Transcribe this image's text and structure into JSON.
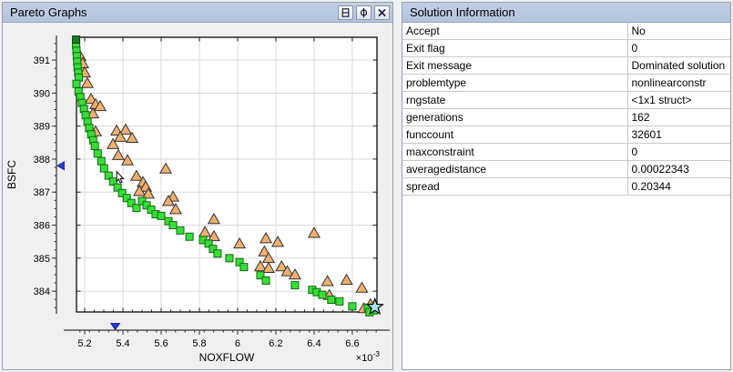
{
  "left_panel": {
    "title": "Pareto Graphs",
    "buttons": [
      {
        "icon": "split-window-icon"
      },
      {
        "icon": "undock-icon"
      },
      {
        "icon": "close-icon"
      }
    ]
  },
  "right_panel": {
    "title": "Solution Information",
    "rows": [
      {
        "property": "Accept",
        "value": "No"
      },
      {
        "property": "Exit flag",
        "value": "0"
      },
      {
        "property": "Exit message",
        "value": "Dominated solution"
      },
      {
        "property": "problemtype",
        "value": "nonlinearconstr"
      },
      {
        "property": "rngstate",
        "value": "<1x1 struct>"
      },
      {
        "property": "generations",
        "value": "162"
      },
      {
        "property": "funccount",
        "value": "32601"
      },
      {
        "property": "maxconstraint",
        "value": "0"
      },
      {
        "property": "averagedistance",
        "value": "0.00022343"
      },
      {
        "property": "spread",
        "value": "0.20344"
      }
    ]
  },
  "chart_data": {
    "type": "scatter",
    "xlabel": "NOXFLOW",
    "ylabel": "BSFC",
    "x_scale_label": {
      "base": "×10",
      "exp": "-3"
    },
    "x_units_note": "x values are in units of 1e-3",
    "xlim": [
      5.157,
      6.729
    ],
    "ylim": [
      383.37,
      391.69
    ],
    "xticks": [
      5.2,
      5.4,
      5.6,
      5.8,
      6.0,
      6.2,
      6.4,
      6.6
    ],
    "xtick_labels": [
      "5.2",
      "5.4",
      "5.6",
      "5.8",
      "6",
      "6.2",
      "6.4",
      "6.6"
    ],
    "yticks": [
      384,
      385,
      386,
      387,
      388,
      389,
      390,
      391
    ],
    "ytick_labels": [
      "384",
      "385",
      "386",
      "387",
      "388",
      "389",
      "390",
      "391"
    ],
    "x_minor_step": 0.05,
    "y_minor_step": 0.25,
    "grid": true,
    "legend_position": "none",
    "series": [
      {
        "name": "dominated-solutions",
        "marker": "triangle",
        "fill": "#f2b06c",
        "edge": "#333333",
        "points": [
          [
            5.176,
            391.12
          ],
          [
            5.19,
            390.9
          ],
          [
            5.2,
            390.62
          ],
          [
            5.214,
            390.3
          ],
          [
            5.233,
            389.82
          ],
          [
            5.257,
            389.66
          ],
          [
            5.281,
            389.6
          ],
          [
            5.243,
            389.38
          ],
          [
            5.257,
            388.84
          ],
          [
            5.367,
            388.86
          ],
          [
            5.414,
            388.89
          ],
          [
            5.386,
            388.67
          ],
          [
            5.448,
            388.64
          ],
          [
            5.348,
            388.45
          ],
          [
            5.376,
            388.12
          ],
          [
            5.424,
            387.96
          ],
          [
            5.624,
            387.71
          ],
          [
            5.471,
            387.49
          ],
          [
            5.505,
            387.3
          ],
          [
            5.519,
            387.16
          ],
          [
            5.486,
            387.03
          ],
          [
            5.533,
            386.95
          ],
          [
            5.662,
            386.86
          ],
          [
            5.638,
            386.73
          ],
          [
            5.676,
            386.48
          ],
          [
            5.876,
            386.18
          ],
          [
            5.829,
            385.79
          ],
          [
            5.876,
            385.66
          ],
          [
            6.01,
            385.44
          ],
          [
            6.148,
            385.6
          ],
          [
            6.21,
            385.49
          ],
          [
            6.4,
            385.76
          ],
          [
            6.14,
            385.2
          ],
          [
            6.162,
            385.0
          ],
          [
            6.119,
            384.75
          ],
          [
            6.162,
            384.7
          ],
          [
            6.23,
            384.75
          ],
          [
            6.26,
            384.6
          ],
          [
            6.3,
            384.5
          ],
          [
            6.47,
            384.3
          ],
          [
            6.57,
            384.34
          ],
          [
            6.65,
            384.1
          ],
          [
            6.48,
            383.88
          ],
          [
            6.695,
            383.6
          ],
          [
            6.66,
            383.48
          ]
        ]
      },
      {
        "name": "pareto-front",
        "marker": "square",
        "fill": "#35e035",
        "edge": "#156615",
        "points": [
          [
            5.155,
            391.45
          ],
          [
            5.157,
            391.28
          ],
          [
            5.159,
            391.12
          ],
          [
            5.161,
            390.95
          ],
          [
            5.163,
            390.78
          ],
          [
            5.166,
            390.62
          ],
          [
            5.169,
            390.47
          ],
          [
            5.157,
            390.28
          ],
          [
            5.168,
            390.05
          ],
          [
            5.177,
            389.88
          ],
          [
            5.186,
            389.7
          ],
          [
            5.196,
            389.52
          ],
          [
            5.205,
            389.33
          ],
          [
            5.215,
            389.13
          ],
          [
            5.224,
            388.94
          ],
          [
            5.234,
            388.75
          ],
          [
            5.244,
            388.57
          ],
          [
            5.253,
            388.4
          ],
          [
            5.268,
            388.17
          ],
          [
            5.287,
            387.94
          ],
          [
            5.301,
            387.72
          ],
          [
            5.325,
            387.5
          ],
          [
            5.349,
            387.32
          ],
          [
            5.372,
            387.14
          ],
          [
            5.396,
            386.97
          ],
          [
            5.42,
            386.82
          ],
          [
            5.444,
            386.67
          ],
          [
            5.471,
            386.52
          ],
          [
            5.5,
            386.73
          ],
          [
            5.524,
            386.6
          ],
          [
            5.548,
            386.47
          ],
          [
            5.571,
            386.33
          ],
          [
            5.6,
            386.28
          ],
          [
            5.638,
            386.12
          ],
          [
            5.662,
            386.0
          ],
          [
            5.7,
            385.84
          ],
          [
            5.748,
            385.65
          ],
          [
            5.819,
            385.55
          ],
          [
            5.848,
            385.44
          ],
          [
            5.871,
            385.28
          ],
          [
            5.895,
            385.14
          ],
          [
            5.957,
            385.0
          ],
          [
            6.01,
            384.88
          ],
          [
            6.033,
            384.73
          ],
          [
            6.119,
            384.48
          ],
          [
            6.148,
            384.32
          ],
          [
            6.3,
            384.18
          ],
          [
            6.39,
            384.04
          ],
          [
            6.414,
            383.97
          ],
          [
            6.443,
            383.89
          ],
          [
            6.49,
            383.74
          ],
          [
            6.533,
            383.69
          ],
          [
            6.6,
            383.54
          ],
          [
            6.681,
            383.5
          ],
          [
            6.714,
            383.42
          ],
          [
            6.69,
            383.36
          ]
        ]
      },
      {
        "name": "clipped-top-solution",
        "marker": "square",
        "fill": "#1b7a22",
        "edge": "#0d3d10",
        "points": [
          [
            5.155,
            391.62
          ]
        ]
      }
    ],
    "selected_solution": {
      "name": "selected-solution",
      "marker": "star",
      "fill": "#a7e8f2",
      "edge": "#000000",
      "point": [
        6.718,
        383.52
      ]
    },
    "sliders": {
      "x_value": 5.36,
      "y_value": 387.8,
      "thumb_color": "#2438d8",
      "thumb_edge": "#101a80"
    },
    "cursor_at": [
      5.367,
      387.62
    ]
  }
}
